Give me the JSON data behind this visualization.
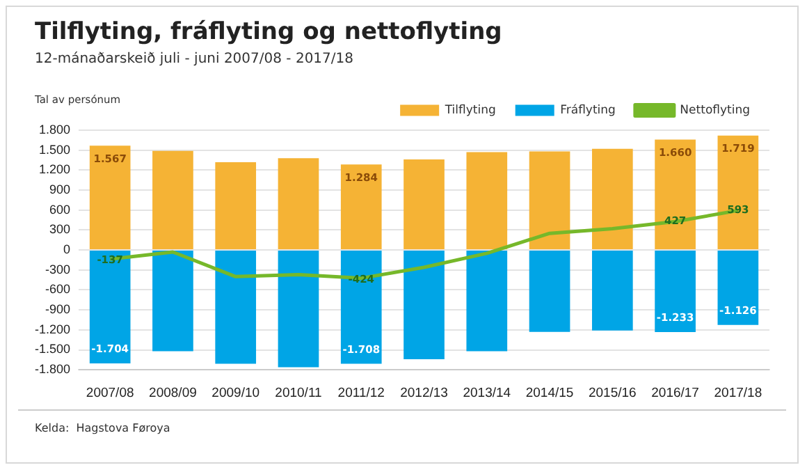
{
  "chart_data": {
    "type": "bar",
    "title": "Tilflyting, fráflyting og nettoflyting",
    "subtitle": "12-mánaðarskeið juli - juni 2007/08 - 2017/18",
    "ylabel": "Tal av persónum",
    "categories": [
      "2007/08",
      "2008/09",
      "2009/10",
      "2010/11",
      "2011/12",
      "2012/13",
      "2013/14",
      "2014/15",
      "2015/16",
      "2016/17",
      "2017/18"
    ],
    "stacked": true,
    "series": [
      {
        "name": "Tilflyting",
        "color": "#f5b335",
        "values": [
          1567,
          1490,
          1320,
          1380,
          1284,
          1360,
          1470,
          1480,
          1520,
          1660,
          1719
        ],
        "value_labels": [
          "1.567",
          null,
          null,
          null,
          "1.284",
          null,
          null,
          null,
          null,
          "1.660",
          "1.719"
        ]
      },
      {
        "name": "Fráflyting",
        "color": "#00a5e6",
        "values": [
          -1704,
          -1520,
          -1710,
          -1760,
          -1708,
          -1640,
          -1520,
          -1230,
          -1210,
          -1233,
          -1126
        ],
        "value_labels": [
          "-1.704",
          null,
          null,
          null,
          "-1.708",
          null,
          null,
          null,
          null,
          "-1.233",
          "-1.126"
        ]
      },
      {
        "name": "Nettoflyting",
        "type": "line",
        "color": "#76b82a",
        "values": [
          -137,
          -30,
          -400,
          -370,
          -424,
          -260,
          -50,
          250,
          320,
          427,
          593
        ],
        "value_labels": [
          "-137",
          null,
          null,
          null,
          "-424",
          null,
          null,
          null,
          null,
          "427",
          "593"
        ]
      }
    ],
    "ylim": [
      -1800,
      1800
    ],
    "yticks": [
      {
        "value": -1800,
        "label": "-1.800"
      },
      {
        "value": -1500,
        "label": "-1.500"
      },
      {
        "value": -1200,
        "label": "-1.200"
      },
      -900,
      -600,
      -300,
      0,
      300,
      600,
      900,
      {
        "value": 1200,
        "label": "1.200"
      },
      {
        "value": 1500,
        "label": "1.500"
      },
      {
        "value": 1800,
        "label": "1.800"
      }
    ],
    "grid": "y",
    "legend": "top right",
    "marker": "none",
    "line_style": "solid",
    "annotations": [
      "Kelda:  Hagstova Føroya"
    ]
  }
}
